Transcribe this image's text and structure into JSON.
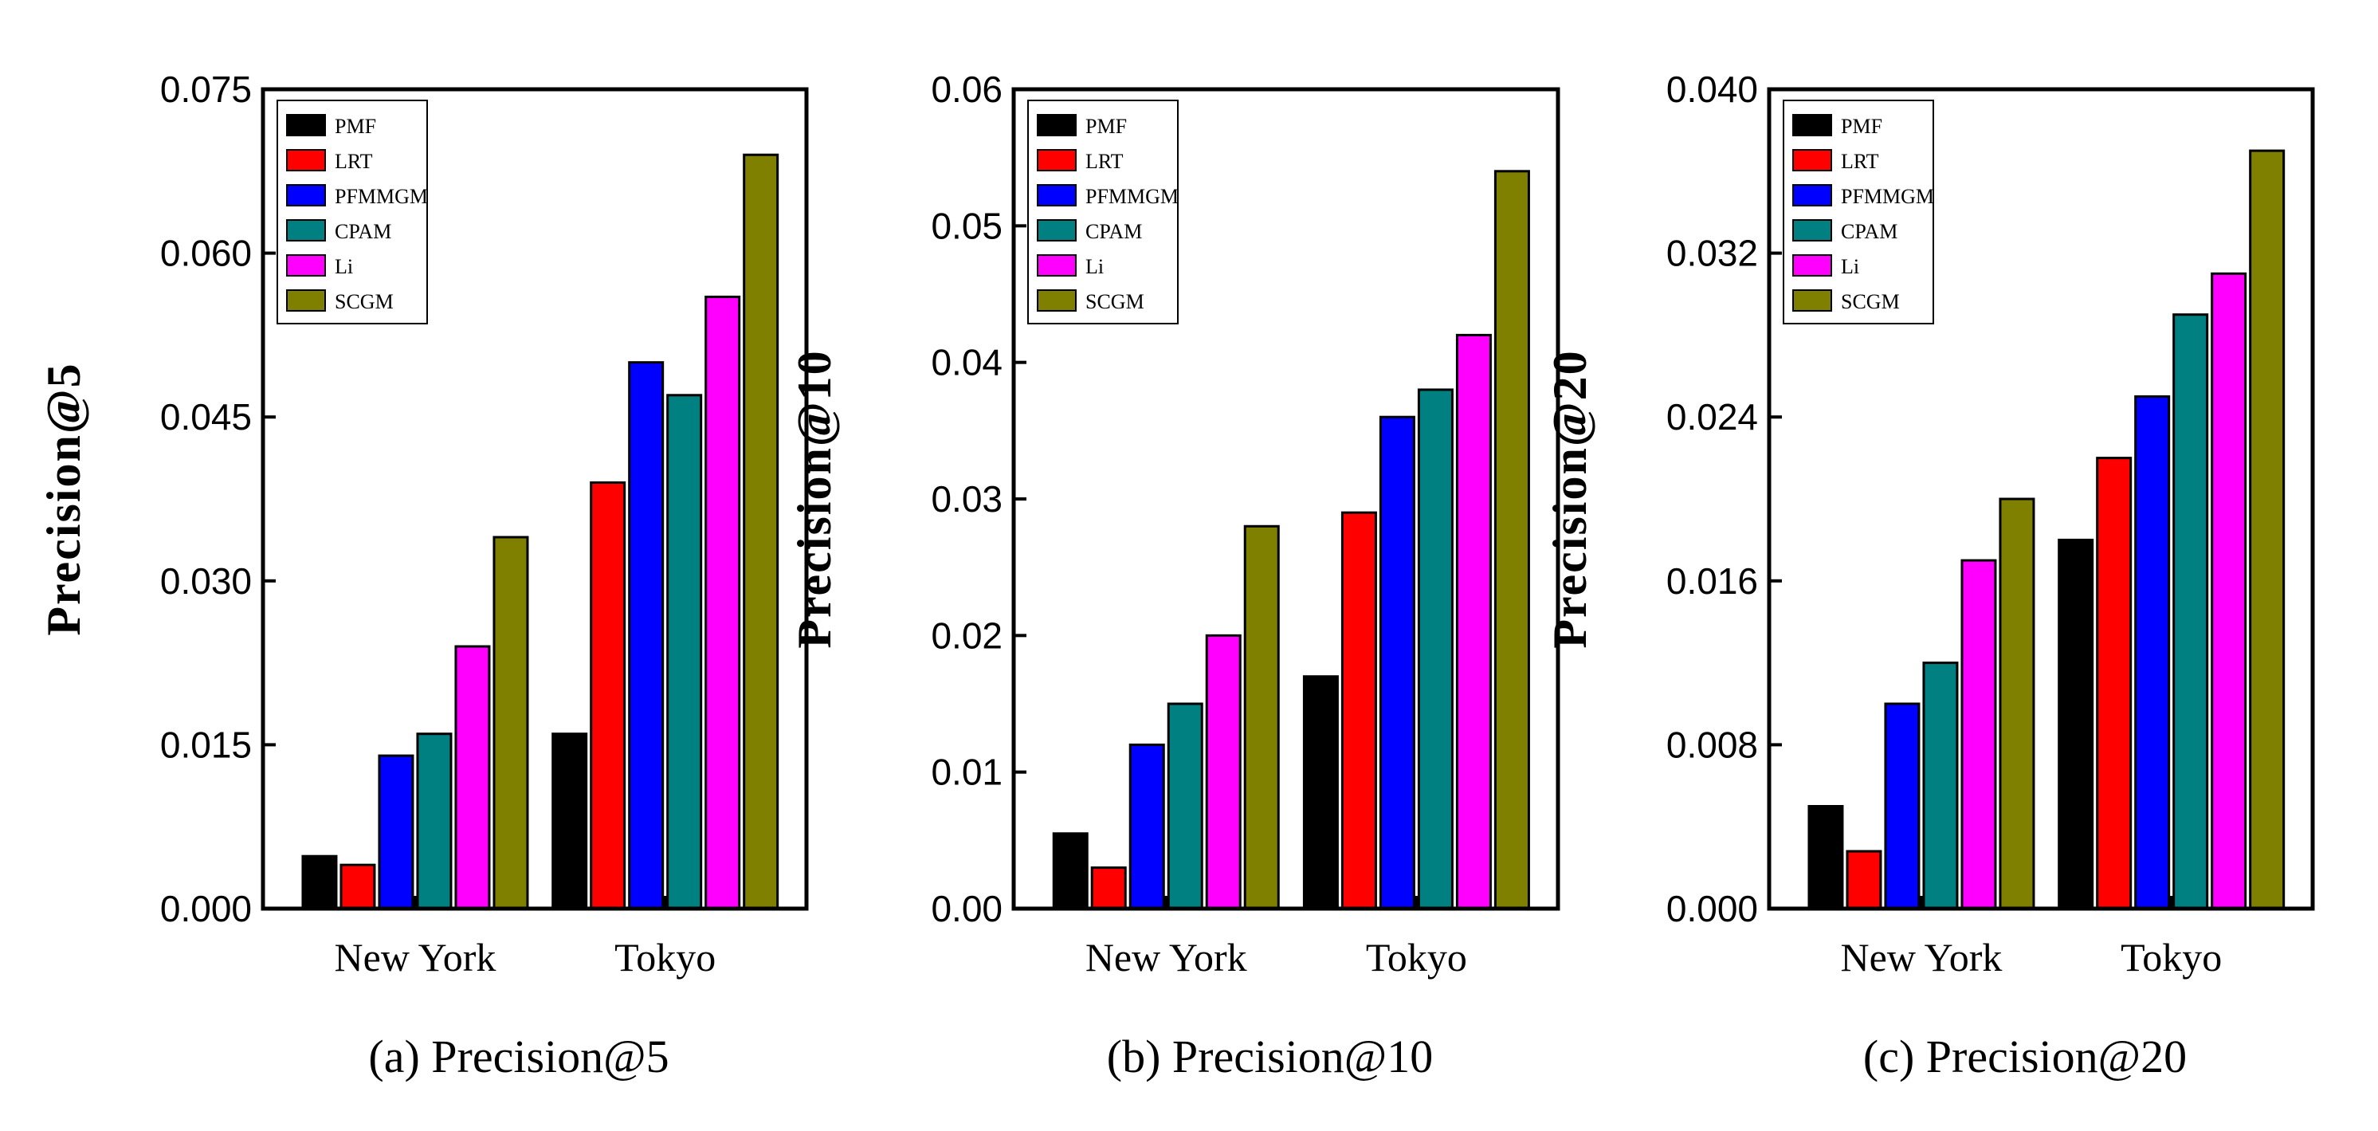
{
  "chart_data": [
    {
      "type": "bar",
      "title": "",
      "caption": "(a)  Precision@5",
      "ylabel": "Precision@5",
      "xlabel": "",
      "categories": [
        "New York",
        "Tokyo"
      ],
      "ylim": [
        0,
        0.075
      ],
      "yticks": [
        "0.000",
        "0.015",
        "0.030",
        "0.045",
        "0.060",
        "0.075"
      ],
      "legend_position": "top-left",
      "series": [
        {
          "name": "PMF",
          "color": "#000000",
          "values": [
            0.0048,
            0.016
          ]
        },
        {
          "name": "LRT",
          "color": "#ff0000",
          "values": [
            0.004,
            0.039
          ]
        },
        {
          "name": "PFMMGM",
          "color": "#0000ff",
          "values": [
            0.014,
            0.05
          ]
        },
        {
          "name": "CPAM",
          "color": "#008080",
          "values": [
            0.016,
            0.047
          ]
        },
        {
          "name": "Li",
          "color": "#ff00ff",
          "values": [
            0.024,
            0.056
          ]
        },
        {
          "name": "SCGM",
          "color": "#808000",
          "values": [
            0.034,
            0.069
          ]
        }
      ]
    },
    {
      "type": "bar",
      "title": "",
      "caption": "(b)  Precision@10",
      "ylabel": "Precision@10",
      "xlabel": "",
      "categories": [
        "New York",
        "Tokyo"
      ],
      "ylim": [
        0,
        0.06
      ],
      "yticks": [
        "0.00",
        "0.01",
        "0.02",
        "0.03",
        "0.04",
        "0.05",
        "0.06"
      ],
      "legend_position": "top-left",
      "series": [
        {
          "name": "PMF",
          "color": "#000000",
          "values": [
            0.0055,
            0.017
          ]
        },
        {
          "name": "LRT",
          "color": "#ff0000",
          "values": [
            0.003,
            0.029
          ]
        },
        {
          "name": "PFMMGM",
          "color": "#0000ff",
          "values": [
            0.012,
            0.036
          ]
        },
        {
          "name": "CPAM",
          "color": "#008080",
          "values": [
            0.015,
            0.038
          ]
        },
        {
          "name": "Li",
          "color": "#ff00ff",
          "values": [
            0.02,
            0.042
          ]
        },
        {
          "name": "SCGM",
          "color": "#808000",
          "values": [
            0.028,
            0.054
          ]
        }
      ]
    },
    {
      "type": "bar",
      "title": "",
      "caption": "(c)  Precision@20",
      "ylabel": "Precision@20",
      "xlabel": "",
      "categories": [
        "New York",
        "Tokyo"
      ],
      "ylim": [
        0,
        0.04
      ],
      "yticks": [
        "0.000",
        "0.008",
        "0.016",
        "0.024",
        "0.032",
        "0.040"
      ],
      "legend_position": "top-left",
      "series": [
        {
          "name": "PMF",
          "color": "#000000",
          "values": [
            0.005,
            0.018
          ]
        },
        {
          "name": "LRT",
          "color": "#ff0000",
          "values": [
            0.0028,
            0.022
          ]
        },
        {
          "name": "PFMMGM",
          "color": "#0000ff",
          "values": [
            0.01,
            0.025
          ]
        },
        {
          "name": "CPAM",
          "color": "#008080",
          "values": [
            0.012,
            0.029
          ]
        },
        {
          "name": "Li",
          "color": "#ff00ff",
          "values": [
            0.017,
            0.031
          ]
        },
        {
          "name": "SCGM",
          "color": "#808000",
          "values": [
            0.02,
            0.037
          ]
        }
      ]
    }
  ]
}
